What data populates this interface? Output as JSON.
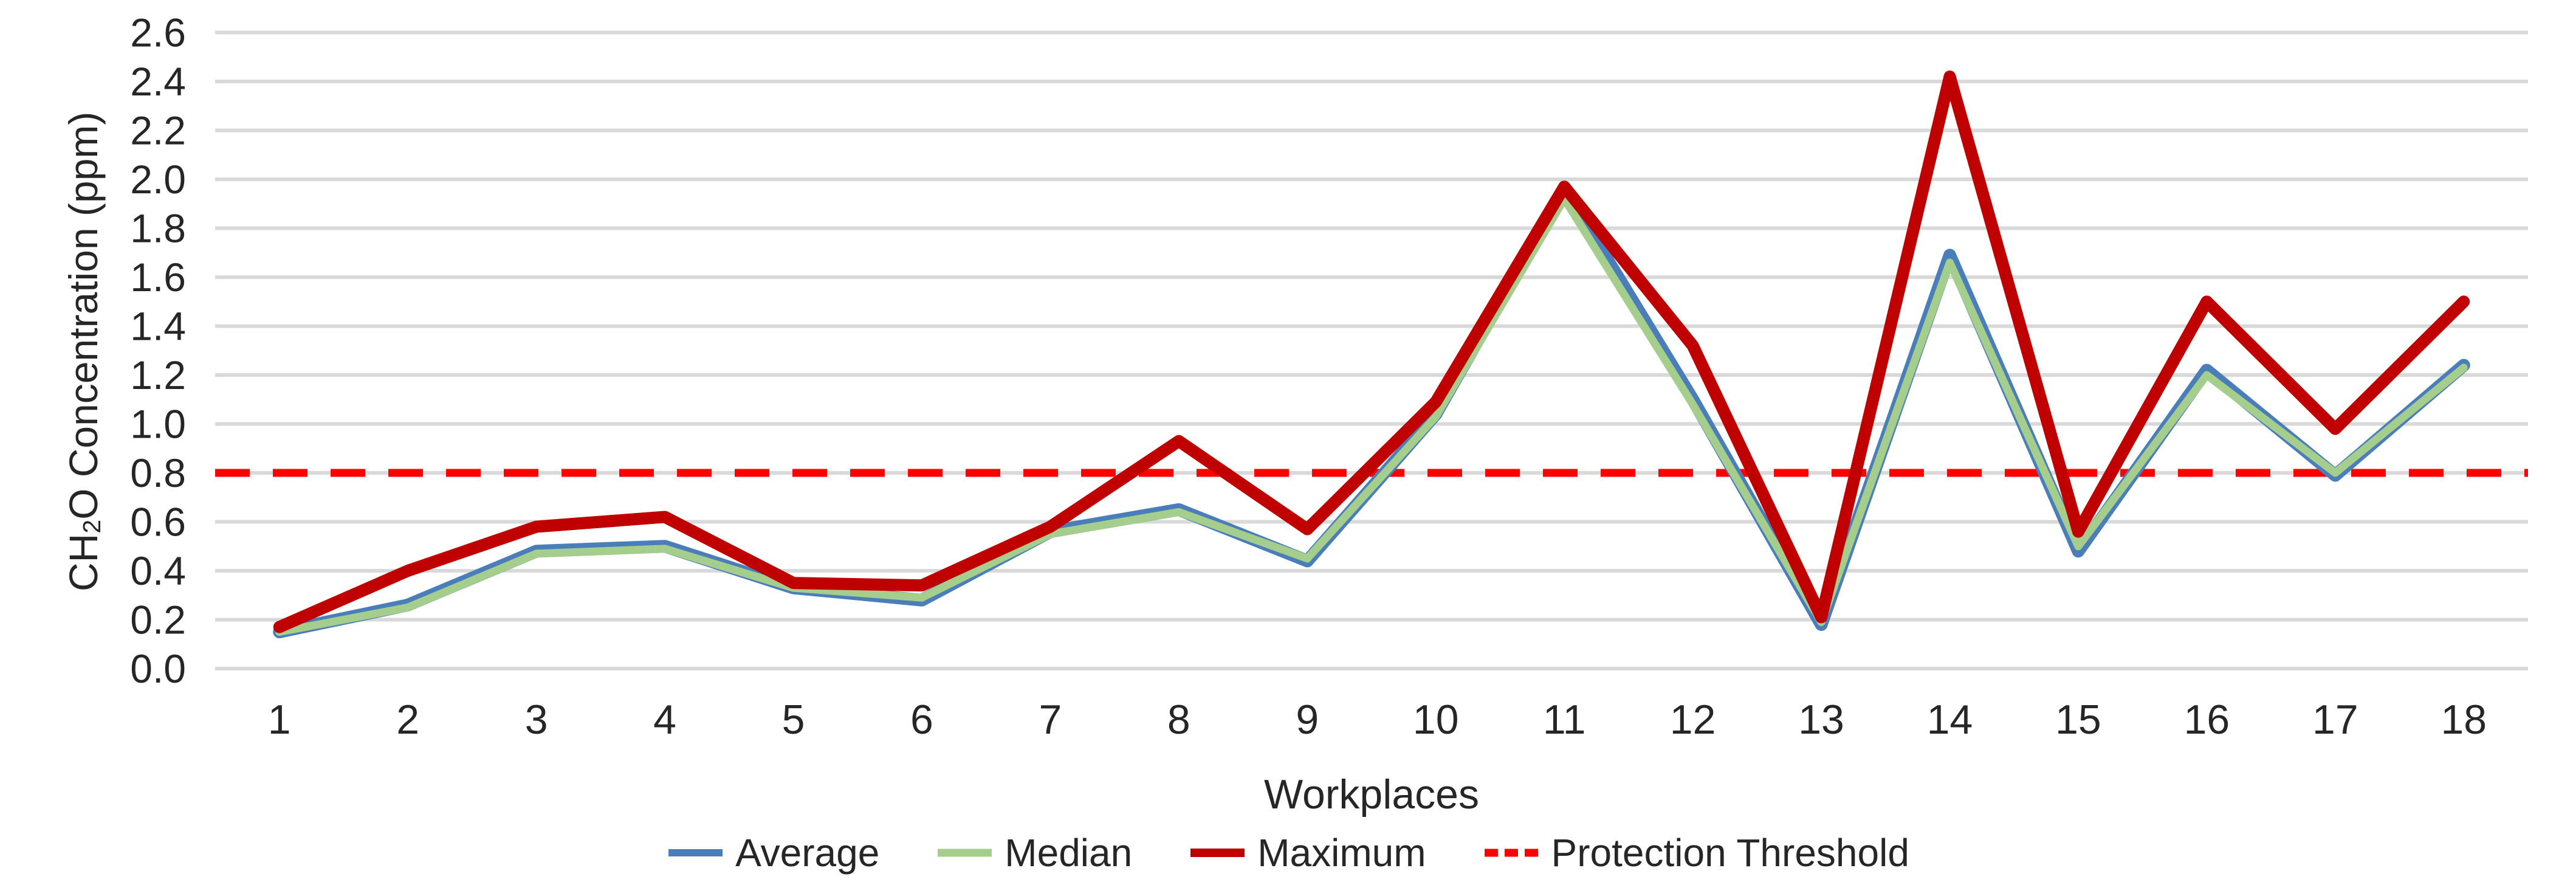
{
  "chart_data": {
    "type": "line",
    "title": "",
    "xlabel": "Workplaces",
    "ylabel": "CH2O Concentration (ppm)",
    "ylabel_parts": {
      "prefix": "CH",
      "sub": "2",
      "suffix": "O Concentration (ppm)"
    },
    "categories": [
      "1",
      "2",
      "3",
      "4",
      "5",
      "6",
      "7",
      "8",
      "9",
      "10",
      "11",
      "12",
      "13",
      "14",
      "15",
      "16",
      "17",
      "18"
    ],
    "series": [
      {
        "name": "Average",
        "color": "#4A7EBB",
        "stroke_width": 21,
        "values": [
          0.15,
          0.26,
          0.48,
          0.5,
          0.33,
          0.28,
          0.56,
          0.65,
          0.44,
          1.04,
          1.96,
          1.1,
          0.18,
          1.69,
          0.48,
          1.22,
          0.79,
          1.24
        ]
      },
      {
        "name": "Median",
        "color": "#A5CE8D",
        "stroke_width": 13,
        "values": [
          0.15,
          0.25,
          0.47,
          0.49,
          0.33,
          0.29,
          0.55,
          0.64,
          0.45,
          1.03,
          1.92,
          1.08,
          0.19,
          1.66,
          0.5,
          1.2,
          0.8,
          1.23
        ]
      },
      {
        "name": "Maximum",
        "color": "#C00000",
        "stroke_width": 20,
        "values": [
          0.17,
          0.4,
          0.58,
          0.62,
          0.35,
          0.34,
          0.58,
          0.93,
          0.57,
          1.09,
          1.97,
          1.32,
          0.21,
          2.42,
          0.56,
          1.5,
          0.98,
          1.5
        ]
      }
    ],
    "threshold": {
      "name": "Protection Threshold",
      "value": 0.8,
      "color": "#FF0000",
      "stroke_width": 13,
      "dash": [
        57,
        38
      ]
    },
    "yticks": [
      "0.0",
      "0.2",
      "0.4",
      "0.6",
      "0.8",
      "1.0",
      "1.2",
      "1.4",
      "1.6",
      "1.8",
      "2.0",
      "2.2",
      "2.4",
      "2.6"
    ],
    "ytick_step": 0.2,
    "ylim": [
      0,
      2.6
    ],
    "grid": true,
    "gridline_color": "#D9D9D9",
    "text_color": "#262626",
    "legend_position": "bottom"
  }
}
